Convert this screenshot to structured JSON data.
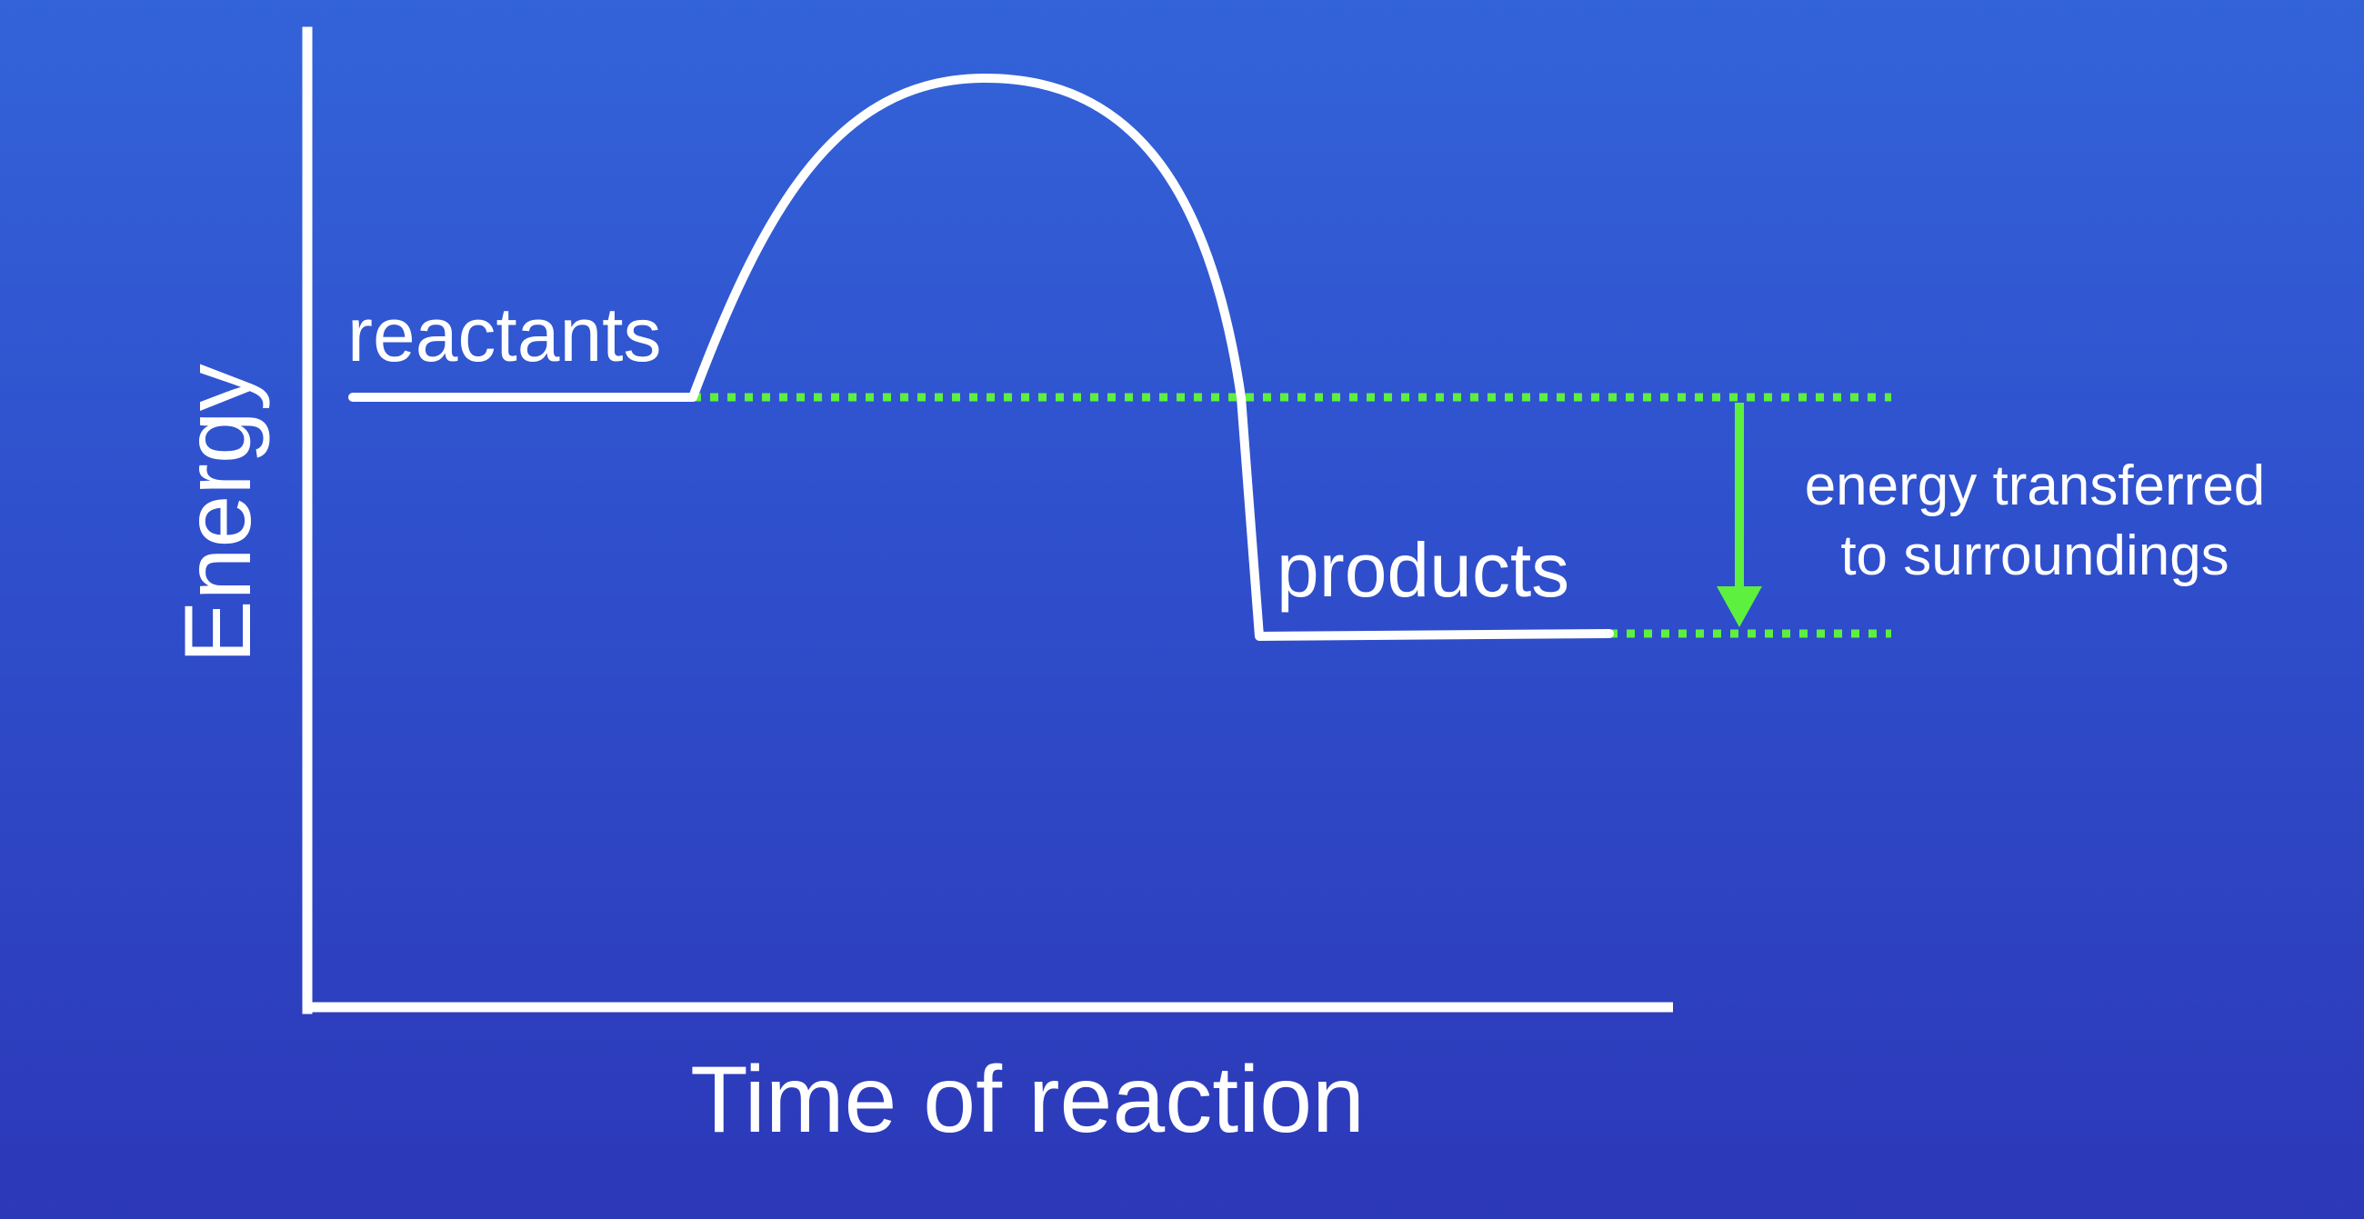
{
  "diagram": {
    "axis_y_label": "Energy",
    "axis_x_label": "Time of reaction",
    "reactants_label": "reactants",
    "products_label": "products",
    "transfer_label_line1": "energy transferred",
    "transfer_label_line2": "to surroundings"
  },
  "colors": {
    "background_top": "#3363d9",
    "background_bottom": "#2c38b8",
    "curve": "#ffffff",
    "axes": "#ffffff",
    "guide_lines": "#5df03f",
    "arrow": "#5df03f",
    "text": "#ffffff"
  }
}
